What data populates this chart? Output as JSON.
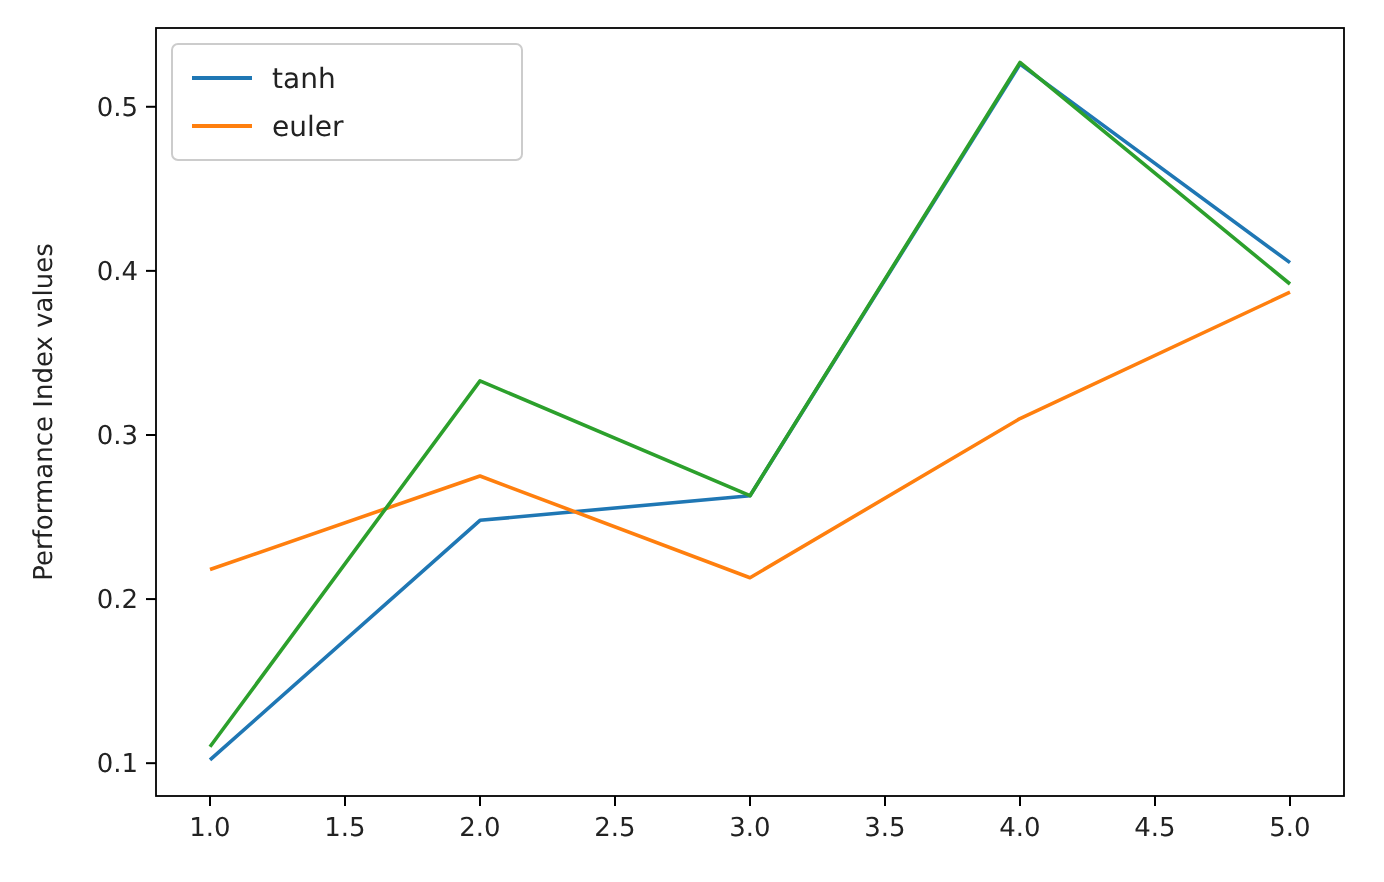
{
  "chart_data": {
    "type": "line",
    "ylabel": "Performance Index values",
    "x": [
      1,
      2,
      3,
      4,
      5
    ],
    "series": [
      {
        "name": "tanh",
        "color": "#1f77b4",
        "values": [
          0.102,
          0.248,
          0.263,
          0.526,
          0.405
        ]
      },
      {
        "name": "euler",
        "color": "#ff7f0e",
        "values": [
          0.218,
          0.275,
          0.213,
          0.31,
          0.387
        ]
      },
      {
        "color": "#2ca02c",
        "values": [
          0.11,
          0.333,
          0.263,
          0.527,
          0.392
        ]
      }
    ],
    "xlim": [
      0.8,
      5.2
    ],
    "xticks": [
      {
        "value": 1,
        "label": "1.0"
      },
      {
        "value": 1.5,
        "label": "1.5"
      },
      {
        "value": 2,
        "label": "2.0"
      },
      {
        "value": 2.5,
        "label": "2.5"
      },
      {
        "value": 3,
        "label": "3.0"
      },
      {
        "value": 3.5,
        "label": "3.5"
      },
      {
        "value": 4,
        "label": "4.0"
      },
      {
        "value": 4.5,
        "label": "4.5"
      },
      {
        "value": 5,
        "label": "5.0"
      }
    ],
    "ylim": [
      0.08,
      0.548
    ],
    "yticks": [
      0.1,
      0.2,
      0.3,
      0.4,
      0.5
    ],
    "grid": false,
    "legend": "top left",
    "marker": "none",
    "line_style": "solid"
  }
}
